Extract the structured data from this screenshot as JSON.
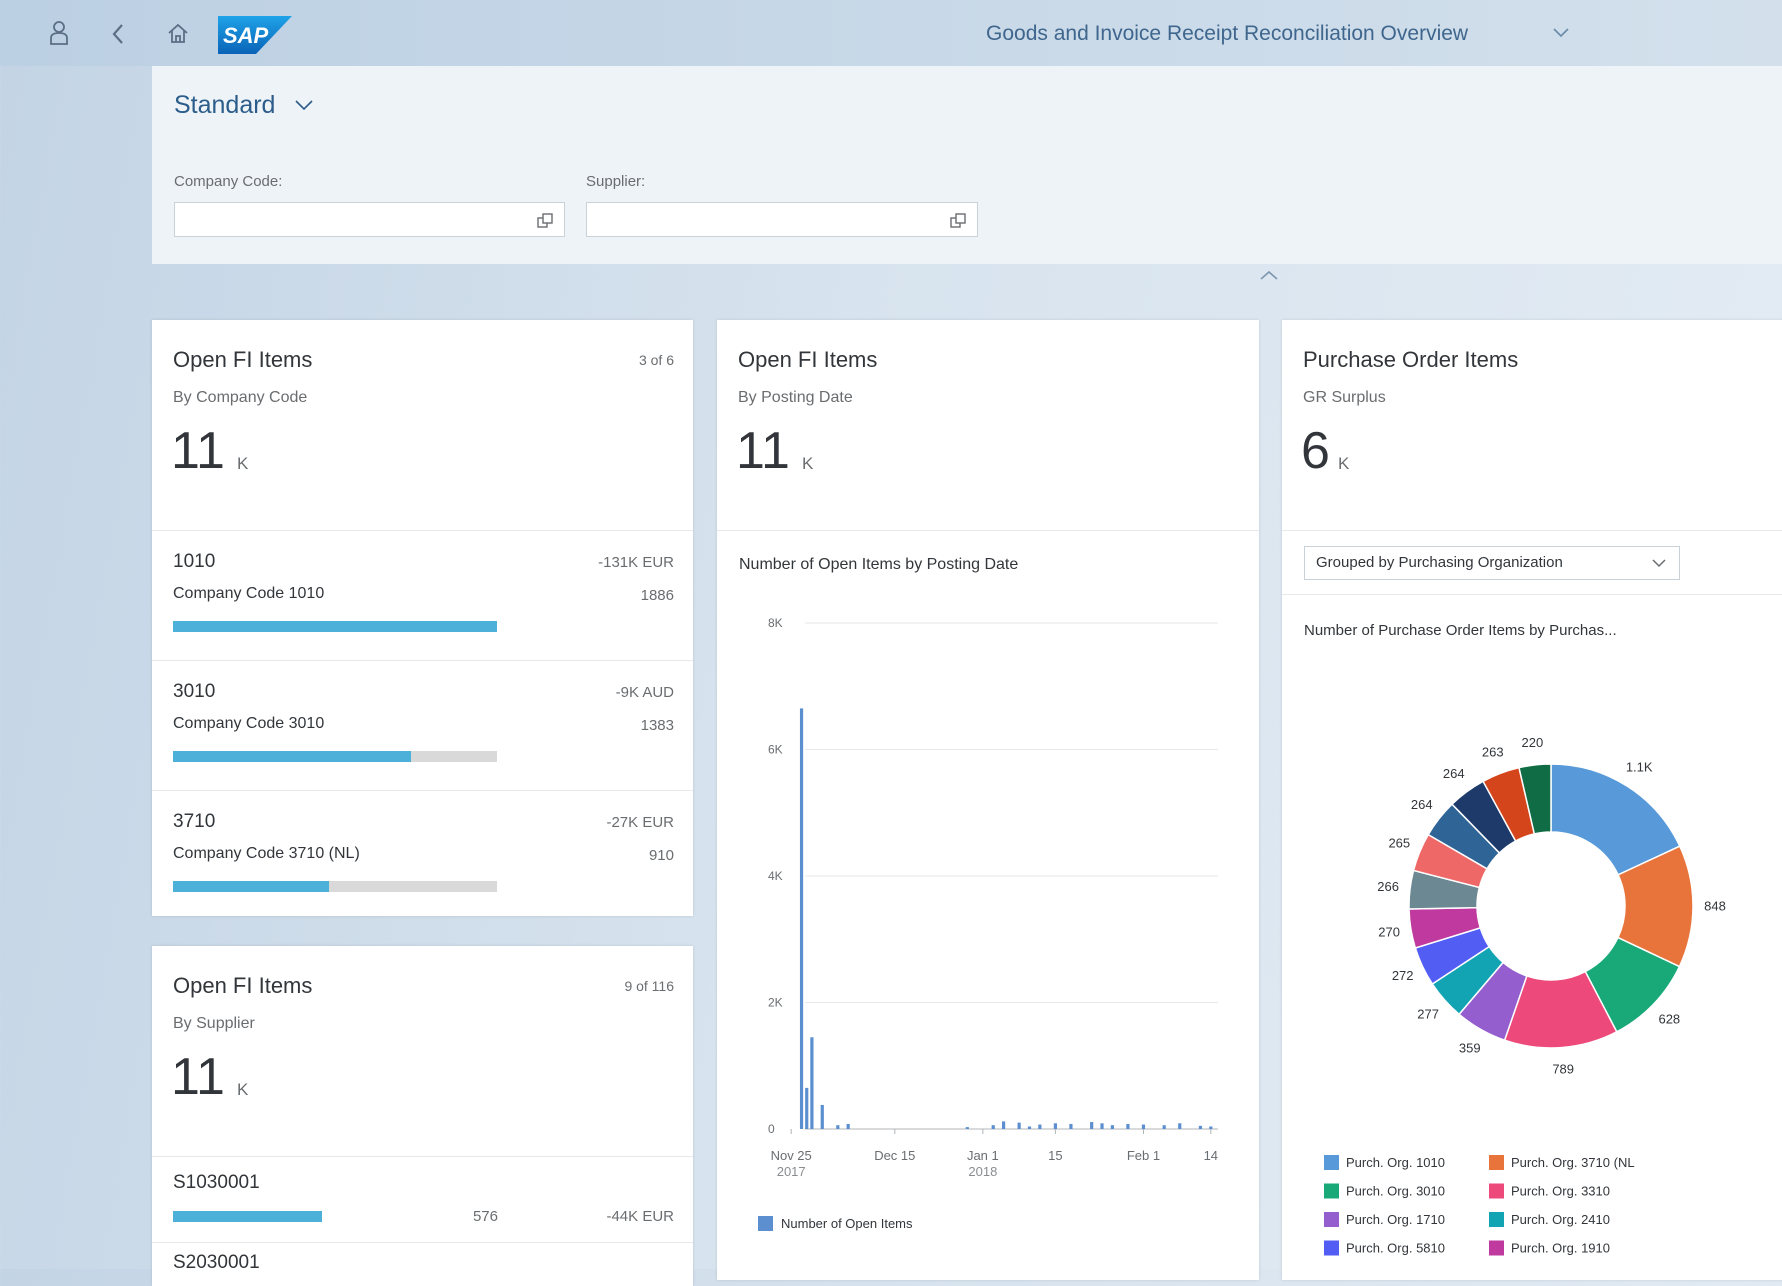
{
  "header": {
    "logo": "SAP",
    "title": "Goods and Invoice Receipt Reconciliation Overview"
  },
  "filter_bar": {
    "variant": "Standard",
    "fields": [
      {
        "label": "Company Code:"
      },
      {
        "label": "Supplier:"
      }
    ]
  },
  "cards": [
    {
      "title": "Open FI Items",
      "counter": "3 of 6",
      "subtitle": "By Company Code",
      "kpi": 11,
      "kpi_unit": "K",
      "items": [
        {
          "id": "1010",
          "description": "Company Code 1010",
          "amount": "-131K EUR",
          "count": 1886
        },
        {
          "id": "3010",
          "description": "Company Code 3010",
          "amount": "-9K AUD",
          "count": 1383
        },
        {
          "id": "3710",
          "description": "Company Code 3710 (NL)",
          "amount": "-27K EUR",
          "count": 910
        }
      ]
    },
    {
      "title": "Open FI Items",
      "counter": "9 of 116",
      "subtitle": "By Supplier",
      "kpi": 11,
      "kpi_unit": "K",
      "items": [
        {
          "id": "S1030001",
          "count": 576,
          "amount": "-44K EUR"
        },
        {
          "id": "S2030001"
        }
      ]
    },
    {
      "title": "Open FI Items",
      "subtitle": "By Posting Date",
      "kpi": 11,
      "kpi_unit": "K",
      "chart_data": {
        "type": "bar",
        "title": "Number of Open Items by Posting Date",
        "x": [
          "2017-11-27",
          "2017-11-28",
          "2017-11-29",
          "2017-12-01",
          "2017-12-04",
          "2017-12-06",
          "2017-12-29",
          "2018-01-03",
          "2018-01-05",
          "2018-01-08",
          "2018-01-10",
          "2018-01-12",
          "2018-01-15",
          "2018-01-18",
          "2018-01-22",
          "2018-01-24",
          "2018-01-26",
          "2018-01-29",
          "2018-02-01",
          "2018-02-05",
          "2018-02-08",
          "2018-02-12",
          "2018-02-14"
        ],
        "series": [
          {
            "name": "Number of Open Items",
            "color": "#5b8fd0",
            "values": [
              6650,
              650,
              1450,
              380,
              60,
              80,
              30,
              60,
              120,
              100,
              40,
              70,
              90,
              80,
              110,
              90,
              60,
              80,
              70,
              60,
              90,
              50,
              40
            ]
          }
        ],
        "xlim": [
          "2017-11-24",
          "2018-02-15"
        ],
        "xticks": [
          {
            "value": "2017-11-25",
            "label": [
              "Nov 25",
              "2017"
            ]
          },
          {
            "value": "2017-12-15",
            "label": "Dec 15"
          },
          {
            "value": "2018-01-01",
            "label": [
              "Jan 1",
              "2018"
            ]
          },
          {
            "value": "2018-01-15",
            "label": "15"
          },
          {
            "value": "2018-02-01",
            "label": "Feb 1"
          },
          {
            "value": "2018-02-14",
            "label": "14"
          }
        ],
        "ylim": [
          0,
          8000
        ],
        "yticks": [
          0,
          {
            "value": 2000,
            "label": "2K"
          },
          {
            "value": 4000,
            "label": "4K"
          },
          {
            "value": 6000,
            "label": "6K"
          },
          {
            "value": 8000,
            "label": "8K"
          }
        ],
        "grid": true,
        "legend": "bottom"
      }
    },
    {
      "title": "Purchase Order Items",
      "subtitle": "GR Surplus",
      "kpi": 6,
      "kpi_unit": "K",
      "group_by": "Grouped by Purchasing Organization",
      "chart_data": {
        "type": "donut",
        "title": "Number of Purchase Order Items by Purchas...",
        "categories": [
          "Purch. Org. 1010",
          "Purch. Org. 3710 (NL",
          "Purch. Org. 3010",
          "Purch. Org. 3310",
          "Purch. Org. 1710",
          "Purch. Org. 2410",
          "Purch. Org. 5810",
          "Purch. Org. 1910",
          null,
          null,
          null,
          null,
          null,
          null
        ],
        "values": [
          1100,
          848,
          628,
          789,
          359,
          277,
          272,
          270,
          266,
          265,
          264,
          264,
          263,
          220
        ],
        "value_labels": [
          "1.1K",
          "848",
          "628",
          "789",
          "359",
          "277",
          "272",
          "270",
          "266",
          "265",
          "264",
          "264",
          "263",
          "220"
        ],
        "colors": [
          "#5899da",
          "#e8743b",
          "#19a979",
          "#ed4a7b",
          "#945ecf",
          "#13a4b4",
          "#525df4",
          "#bf399e",
          "#6c8893",
          "#ee6868",
          "#2f6497",
          "#1d3a6a",
          "#d5451b",
          "#106c45"
        ],
        "legend": "bottom"
      }
    }
  ]
}
